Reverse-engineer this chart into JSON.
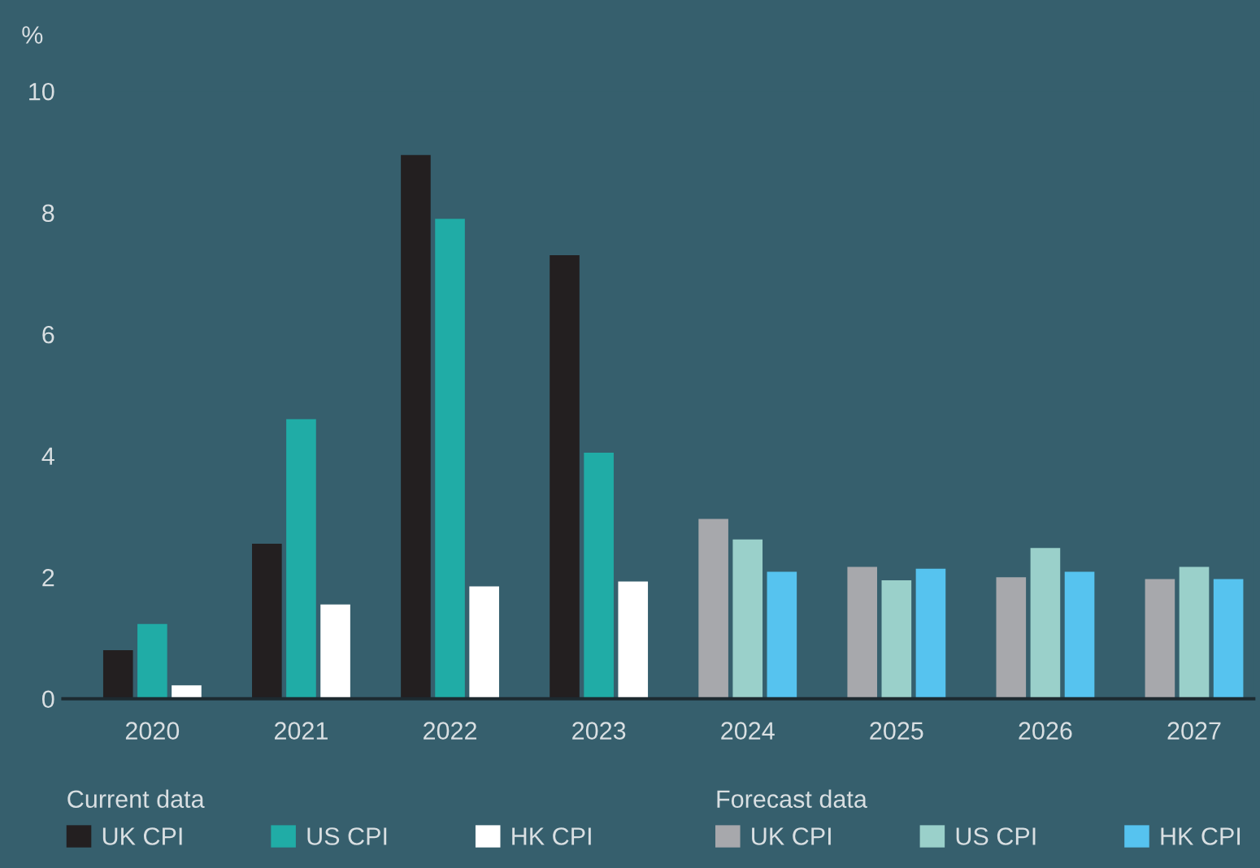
{
  "chart_data": {
    "type": "bar",
    "categories": [
      "2020",
      "2021",
      "2022",
      "2023",
      "2024",
      "2025",
      "2026",
      "2027"
    ],
    "ylabel": "%",
    "ylim": [
      0,
      10
    ],
    "yticks": [
      0,
      2,
      4,
      6,
      8,
      10
    ],
    "grid": false,
    "legend": "bottom",
    "annotations": [
      "Current data",
      "Forecast data"
    ],
    "series": [
      {
        "name": "UK CPI",
        "color": "#231f20",
        "values": [
          0.8,
          2.55,
          8.95,
          7.3,
          null,
          null,
          null,
          null
        ]
      },
      {
        "name": "US CPI",
        "color": "#20aca6",
        "values": [
          1.23,
          4.6,
          7.9,
          4.05,
          null,
          null,
          null,
          null
        ]
      },
      {
        "name": "HK CPI",
        "color": "#ffffff",
        "values": [
          0.22,
          1.55,
          1.85,
          1.93,
          null,
          null,
          null,
          null
        ]
      },
      {
        "name": "UK CPI",
        "color": "#a7a8ac",
        "values": [
          null,
          null,
          null,
          null,
          2.96,
          2.17,
          2.0,
          1.97
        ]
      },
      {
        "name": "US CPI",
        "color": "#9ad0ca",
        "values": [
          null,
          null,
          null,
          null,
          2.62,
          1.95,
          2.48,
          2.17
        ]
      },
      {
        "name": "HK CPI",
        "color": "#56c3ef",
        "values": [
          null,
          null,
          null,
          null,
          2.09,
          2.14,
          2.09,
          1.97
        ]
      }
    ]
  }
}
